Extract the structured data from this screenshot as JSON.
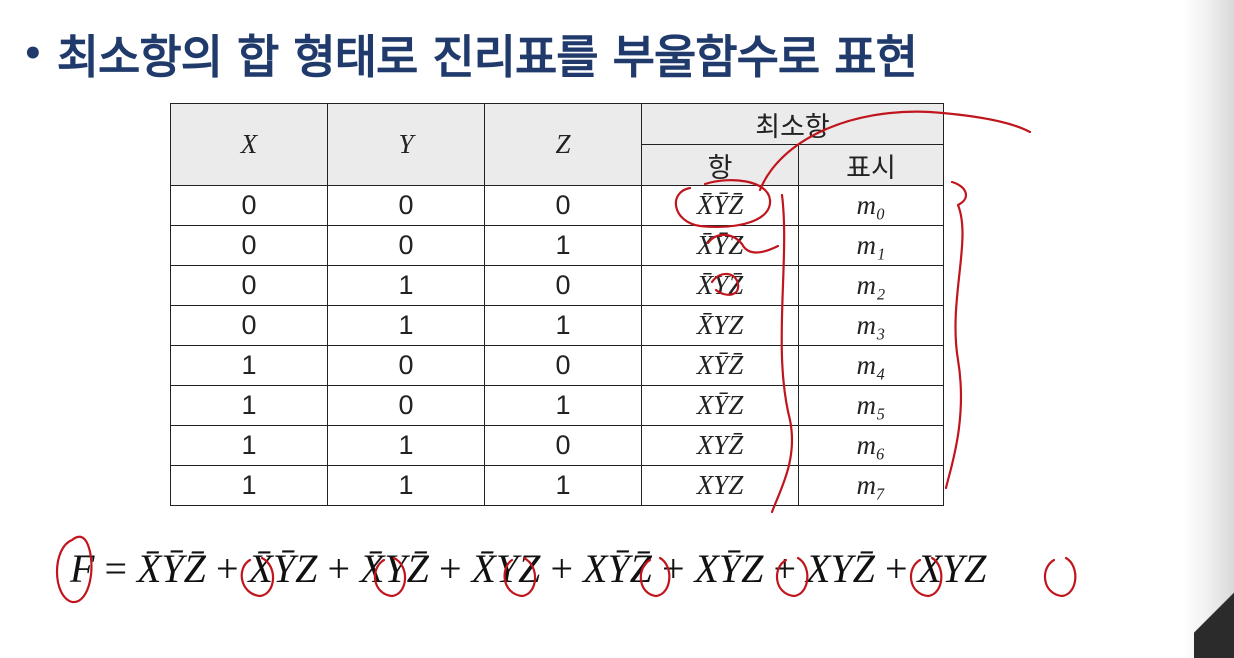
{
  "title": {
    "bullet": "•",
    "text": "최소항의 합 형태로 진리표를 부울함수로 표현"
  },
  "table": {
    "headers": {
      "x": "X",
      "y": "Y",
      "z": "Z",
      "group": "최소항",
      "term": "항",
      "symbol": "표시"
    },
    "rows": [
      {
        "x": "0",
        "y": "0",
        "z": "0",
        "term": "X̄ȲZ̄",
        "symbol": "m₀"
      },
      {
        "x": "0",
        "y": "0",
        "z": "1",
        "term": "X̄ȲZ",
        "symbol": "m₁"
      },
      {
        "x": "0",
        "y": "1",
        "z": "0",
        "term": "X̄YZ̄",
        "symbol": "m₂"
      },
      {
        "x": "0",
        "y": "1",
        "z": "1",
        "term": "X̄YZ",
        "symbol": "m₃"
      },
      {
        "x": "1",
        "y": "0",
        "z": "0",
        "term": "XȲZ̄",
        "symbol": "m₄"
      },
      {
        "x": "1",
        "y": "0",
        "z": "1",
        "term": "XȲZ",
        "symbol": "m₅"
      },
      {
        "x": "1",
        "y": "1",
        "z": "0",
        "term": "XYZ̄",
        "symbol": "m₆"
      },
      {
        "x": "1",
        "y": "1",
        "z": "1",
        "term": "XYZ",
        "symbol": "m₇"
      }
    ]
  },
  "equation": {
    "lhs": "F",
    "equals": "=",
    "plus": "+",
    "terms": [
      "X̄ȲZ̄",
      "X̄ȲZ",
      "X̄YZ̄",
      "X̄YZ",
      "XȲZ̄",
      "XȲZ",
      "XYZ̄",
      "XYZ"
    ]
  },
  "colors": {
    "title": "#1f3a6b",
    "header_bg": "#ebebeb",
    "annotation": "#c0151d"
  }
}
